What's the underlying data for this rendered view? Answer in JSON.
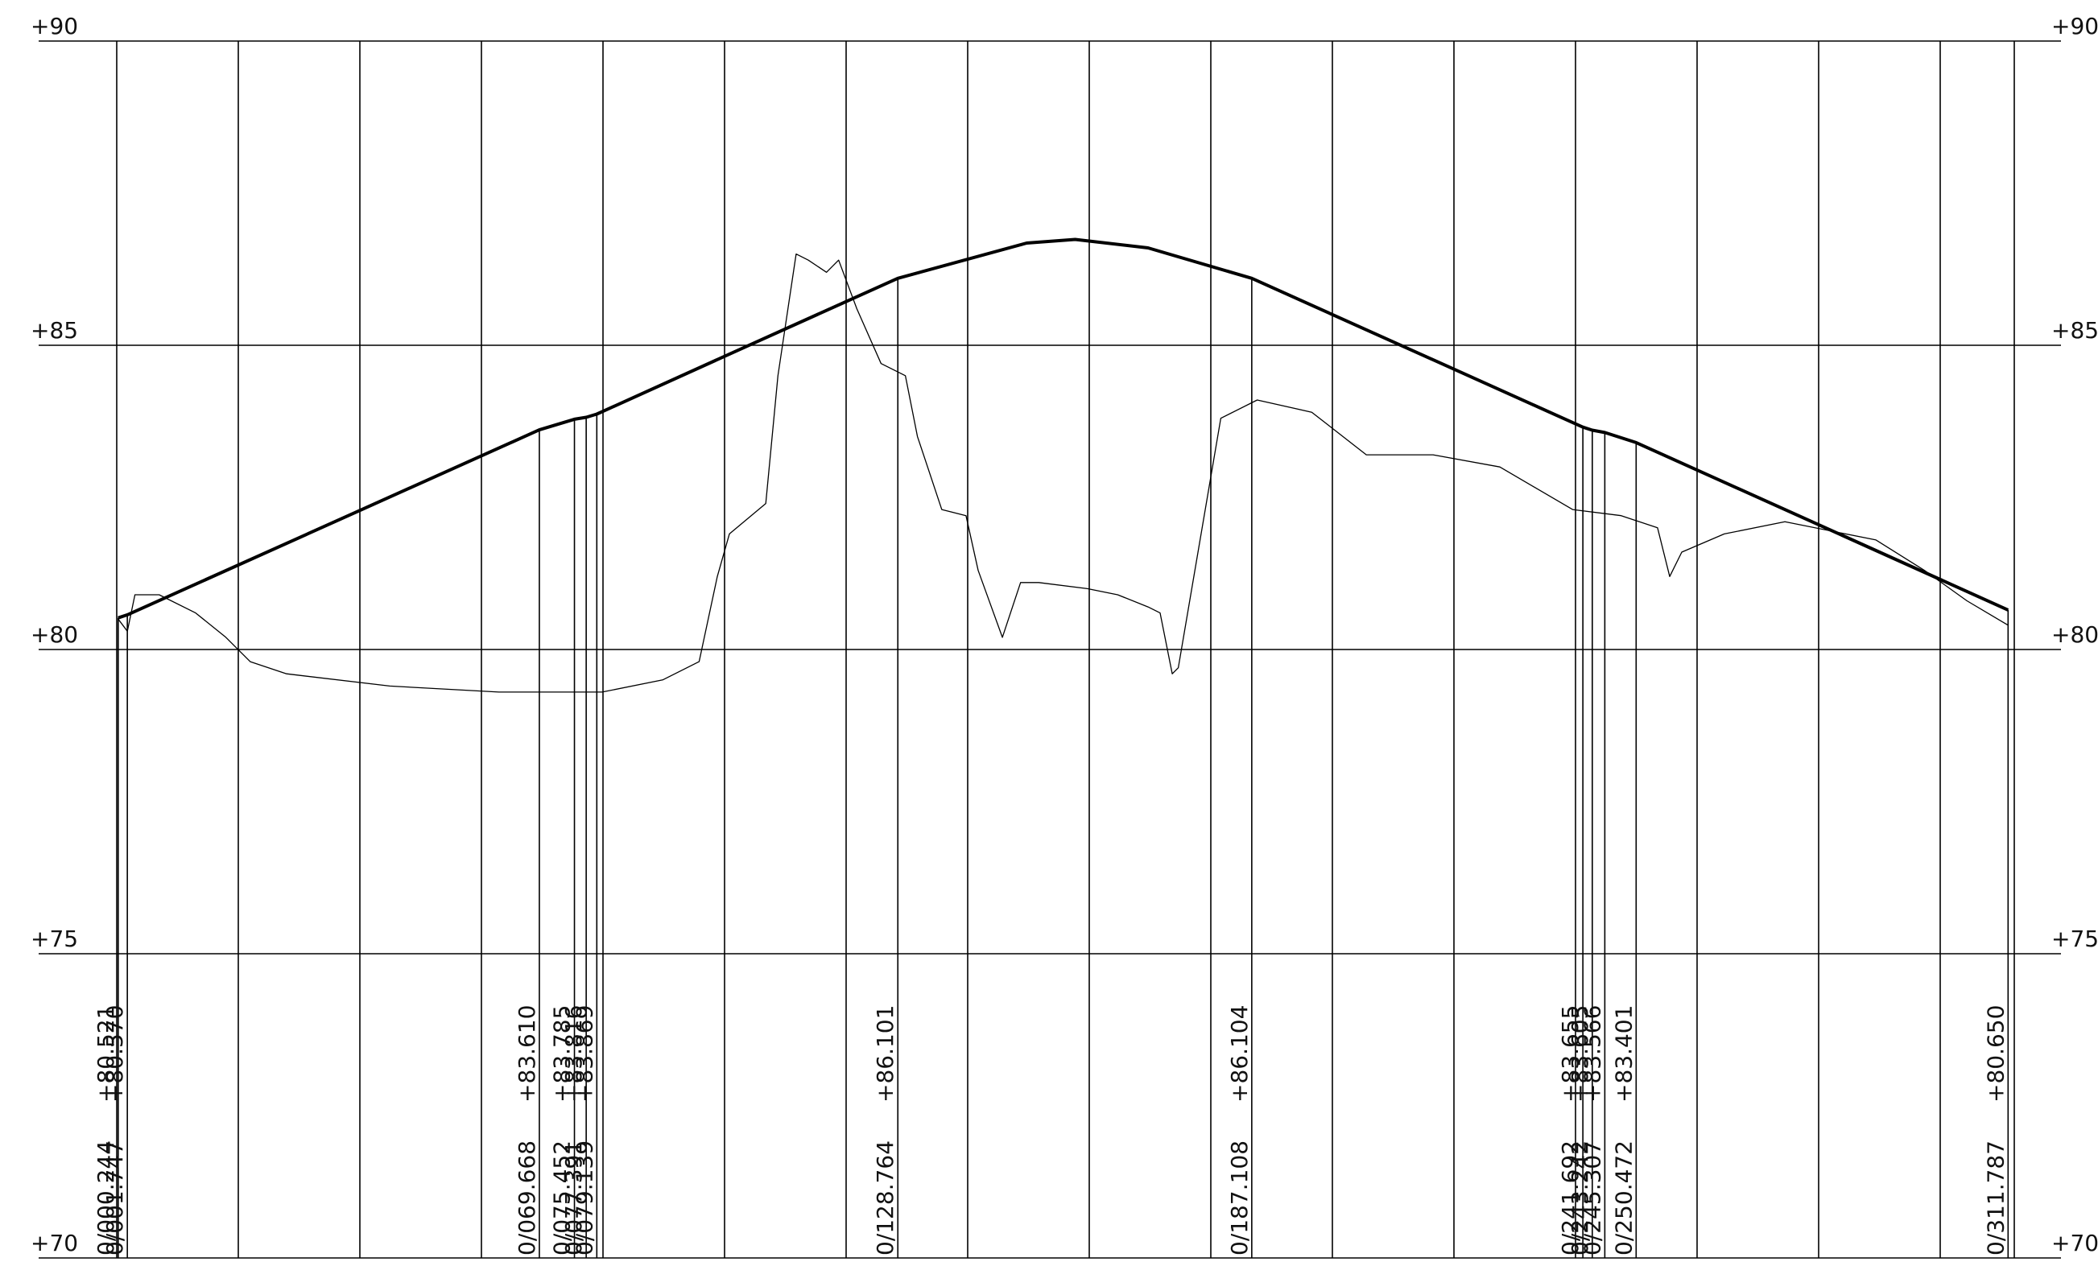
{
  "y_axis_labels": [
    "+90",
    "+85",
    "+80",
    "+75",
    "+70"
  ],
  "stations": [
    {
      "station": "0/000.244",
      "elevation": "+80.521"
    },
    {
      "station": "0/001.747",
      "elevation": "+80.570"
    },
    {
      "station": "0/069.668",
      "elevation": "+83.610"
    },
    {
      "station": "0/075.452",
      "elevation": "+83.785"
    },
    {
      "station": "0/077.391",
      "elevation": "+83.816"
    },
    {
      "station": "0/079.139",
      "elevation": "+83.869"
    },
    {
      "station": "0/128.764",
      "elevation": "+86.101"
    },
    {
      "station": "0/187.108",
      "elevation": "+86.104"
    },
    {
      "station": "0/241.692",
      "elevation": "+83.655"
    },
    {
      "station": "0/243.242",
      "elevation": "+83.605"
    },
    {
      "station": "0/245.307",
      "elevation": "+83.566"
    },
    {
      "station": "0/250.472",
      "elevation": "+83.401"
    },
    {
      "station": "0/311.787",
      "elevation": "+80.650"
    }
  ],
  "chart_data": {
    "type": "line",
    "ylim": [
      70,
      90
    ],
    "series": [
      {
        "values": [
          [
            0.244,
            80.52
          ],
          [
            1.747,
            80.57
          ],
          [
            69.668,
            83.61
          ],
          [
            75.452,
            83.785
          ],
          [
            77.391,
            83.816
          ],
          [
            79.139,
            83.869
          ],
          [
            104,
            84.99
          ],
          [
            128.764,
            86.1
          ],
          [
            150,
            86.68
          ],
          [
            158,
            86.74
          ],
          [
            170,
            86.6
          ],
          [
            187.108,
            86.1
          ],
          [
            241.692,
            83.655
          ],
          [
            243.242,
            83.605
          ],
          [
            245.307,
            83.566
          ],
          [
            250.472,
            83.401
          ],
          [
            311.787,
            80.65
          ]
        ]
      },
      {
        "values": [
          [
            0.244,
            80.5
          ],
          [
            1.747,
            80.3
          ],
          [
            3,
            80.9
          ],
          [
            7,
            80.9
          ],
          [
            13,
            80.6
          ],
          [
            18,
            80.2
          ],
          [
            22,
            79.8
          ],
          [
            28,
            79.6
          ],
          [
            45,
            79.4
          ],
          [
            63,
            79.3
          ],
          [
            80,
            79.3
          ],
          [
            90,
            79.5
          ],
          [
            96,
            79.8
          ],
          [
            99,
            81.2
          ],
          [
            101,
            81.9
          ],
          [
            107,
            82.4
          ],
          [
            109,
            84.5
          ],
          [
            112,
            86.5
          ],
          [
            114,
            86.4
          ],
          [
            117,
            86.2
          ],
          [
            119,
            86.4
          ],
          [
            122,
            85.6
          ],
          [
            126,
            84.7
          ],
          [
            130,
            84.5
          ],
          [
            132,
            83.5
          ],
          [
            136,
            82.3
          ],
          [
            140,
            82.2
          ],
          [
            142,
            81.3
          ],
          [
            146,
            80.2
          ],
          [
            149,
            81.1
          ],
          [
            152,
            81.1
          ],
          [
            160,
            81.0
          ],
          [
            165,
            80.9
          ],
          [
            170,
            80.7
          ],
          [
            172,
            80.6
          ],
          [
            174,
            79.6
          ],
          [
            175,
            79.7
          ],
          [
            182,
            83.8
          ],
          [
            188,
            84.1
          ],
          [
            197,
            83.9
          ],
          [
            206,
            83.2
          ],
          [
            217,
            83.2
          ],
          [
            228,
            83.0
          ],
          [
            240,
            82.3
          ],
          [
            248,
            82.2
          ],
          [
            254,
            82.0
          ],
          [
            256,
            81.2
          ],
          [
            258,
            81.6
          ],
          [
            265,
            81.9
          ],
          [
            275,
            82.1
          ],
          [
            290,
            81.8
          ],
          [
            298,
            81.3
          ],
          [
            305,
            80.8
          ],
          [
            311.787,
            80.4
          ]
        ]
      }
    ]
  }
}
